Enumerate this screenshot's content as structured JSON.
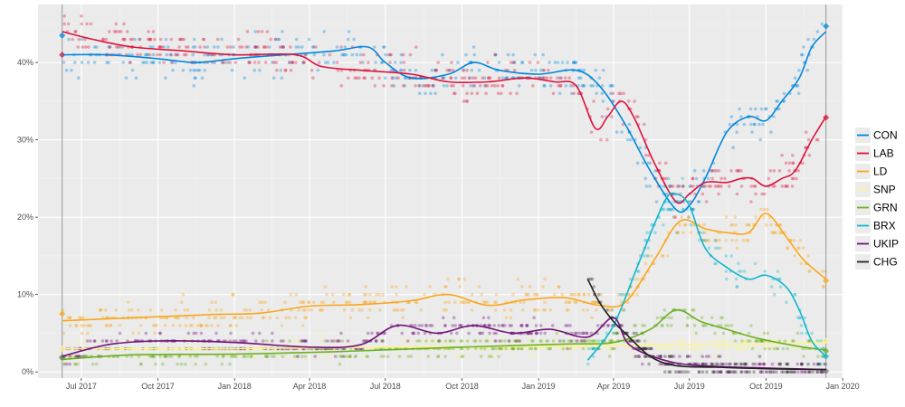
{
  "colors": {
    "panel_bg": "#ebebeb",
    "grid_major": "#ffffff",
    "grid_minor": "#f4f4f4",
    "axis_text": "#4d4d4d",
    "event_line": "#999999"
  },
  "legend": {
    "items": [
      {
        "name": "CON",
        "color": "#0087dc"
      },
      {
        "name": "LAB",
        "color": "#dc143c"
      },
      {
        "name": "LD",
        "color": "#faa61a"
      },
      {
        "name": "SNP",
        "color": "#fdf38e"
      },
      {
        "name": "GRN",
        "color": "#6ab023"
      },
      {
        "name": "BRX",
        "color": "#12b6cf"
      },
      {
        "name": "UKIP",
        "color": "#70147a"
      },
      {
        "name": "CHG",
        "color": "#222221"
      }
    ]
  },
  "chart_data": {
    "type": "line",
    "title": "",
    "xlabel": "",
    "ylabel": "",
    "x_range": [
      "2017-05-10",
      "2020-01-02"
    ],
    "ylim": [
      -0.8,
      47.5
    ],
    "x_ticks": [
      {
        "date": "2017-07-01",
        "label": "Jul 2017"
      },
      {
        "date": "2017-10-01",
        "label": "Oct 2017"
      },
      {
        "date": "2018-01-01",
        "label": "Jan 2018"
      },
      {
        "date": "2018-04-01",
        "label": "Apr 2018"
      },
      {
        "date": "2018-07-01",
        "label": "Jul 2018"
      },
      {
        "date": "2018-10-01",
        "label": "Oct 2018"
      },
      {
        "date": "2019-01-01",
        "label": "Jan 2019"
      },
      {
        "date": "2019-04-01",
        "label": "Apr 2019"
      },
      {
        "date": "2019-07-01",
        "label": "Jul 2019"
      },
      {
        "date": "2019-10-01",
        "label": "Oct 2019"
      },
      {
        "date": "2020-01-01",
        "label": "Jan 2020"
      }
    ],
    "y_ticks": [
      {
        "value": 0,
        "label": "0%"
      },
      {
        "value": 10,
        "label": "10%"
      },
      {
        "value": 20,
        "label": "20%"
      },
      {
        "value": 30,
        "label": "30%"
      },
      {
        "value": 40,
        "label": "40%"
      }
    ],
    "event_lines": [
      "2017-06-08",
      "2019-12-12"
    ],
    "grid": true,
    "legend_position": "right",
    "series": [
      {
        "name": "CON",
        "color": "#0087dc",
        "points": [
          [
            "2017-06-08",
            41
          ],
          [
            "2017-08-01",
            41
          ],
          [
            "2017-10-01",
            40.5
          ],
          [
            "2017-11-15",
            40
          ],
          [
            "2018-01-01",
            40.5
          ],
          [
            "2018-03-01",
            41
          ],
          [
            "2018-05-01",
            41.5
          ],
          [
            "2018-06-10",
            42
          ],
          [
            "2018-07-01",
            40
          ],
          [
            "2018-08-01",
            38
          ],
          [
            "2018-09-15",
            38.5
          ],
          [
            "2018-10-15",
            40
          ],
          [
            "2018-11-15",
            39
          ],
          [
            "2019-01-01",
            38.5
          ],
          [
            "2019-02-15",
            39
          ],
          [
            "2019-03-15",
            37
          ],
          [
            "2019-04-15",
            32
          ],
          [
            "2019-05-15",
            26
          ],
          [
            "2019-06-15",
            21
          ],
          [
            "2019-07-01",
            21.5
          ],
          [
            "2019-07-20",
            25
          ],
          [
            "2019-08-15",
            31
          ],
          [
            "2019-09-10",
            33
          ],
          [
            "2019-10-01",
            32.5
          ],
          [
            "2019-10-20",
            35
          ],
          [
            "2019-11-10",
            38
          ],
          [
            "2019-11-25",
            42
          ],
          [
            "2019-12-12",
            44
          ]
        ]
      },
      {
        "name": "LAB",
        "color": "#dc143c",
        "points": [
          [
            "2017-06-08",
            44
          ],
          [
            "2017-07-15",
            43
          ],
          [
            "2017-09-01",
            42
          ],
          [
            "2017-11-01",
            41.5
          ],
          [
            "2018-01-01",
            41
          ],
          [
            "2018-03-15",
            41
          ],
          [
            "2018-04-15",
            39.5
          ],
          [
            "2018-06-01",
            39
          ],
          [
            "2018-08-01",
            38.5
          ],
          [
            "2018-09-15",
            37.5
          ],
          [
            "2018-11-01",
            37.5
          ],
          [
            "2018-12-15",
            38
          ],
          [
            "2019-01-20",
            37.5
          ],
          [
            "2019-02-15",
            37
          ],
          [
            "2019-03-10",
            31.5
          ],
          [
            "2019-03-25",
            33
          ],
          [
            "2019-04-10",
            35
          ],
          [
            "2019-04-25",
            33
          ],
          [
            "2019-05-20",
            27
          ],
          [
            "2019-06-15",
            22
          ],
          [
            "2019-07-01",
            23
          ],
          [
            "2019-07-20",
            24.5
          ],
          [
            "2019-08-15",
            24.5
          ],
          [
            "2019-09-01",
            25
          ],
          [
            "2019-09-15",
            25
          ],
          [
            "2019-10-01",
            24
          ],
          [
            "2019-10-20",
            25
          ],
          [
            "2019-11-05",
            26
          ],
          [
            "2019-11-25",
            30
          ],
          [
            "2019-12-12",
            33
          ]
        ]
      },
      {
        "name": "LD",
        "color": "#faa61a",
        "points": [
          [
            "2017-06-08",
            6.6
          ],
          [
            "2017-09-01",
            7
          ],
          [
            "2017-12-01",
            7.4
          ],
          [
            "2018-02-01",
            7.6
          ],
          [
            "2018-04-01",
            8.5
          ],
          [
            "2018-06-01",
            8.7
          ],
          [
            "2018-08-01",
            9.2
          ],
          [
            "2018-09-15",
            10
          ],
          [
            "2018-11-01",
            8.6
          ],
          [
            "2018-12-15",
            9.3
          ],
          [
            "2019-02-01",
            9.6
          ],
          [
            "2019-03-15",
            8.6
          ],
          [
            "2019-04-15",
            9
          ],
          [
            "2019-05-20",
            14.5
          ],
          [
            "2019-06-20",
            19.5
          ],
          [
            "2019-07-20",
            18.5
          ],
          [
            "2019-08-15",
            18
          ],
          [
            "2019-09-10",
            18
          ],
          [
            "2019-10-01",
            20.5
          ],
          [
            "2019-10-25",
            17.5
          ],
          [
            "2019-11-15",
            14.5
          ],
          [
            "2019-12-12",
            12
          ]
        ]
      },
      {
        "name": "SNP",
        "color": "#fdf38e",
        "points": [
          [
            "2017-06-08",
            3.0
          ],
          [
            "2018-01-01",
            3.0
          ],
          [
            "2018-07-01",
            3.2
          ],
          [
            "2019-01-01",
            3.3
          ],
          [
            "2019-06-01",
            3.5
          ],
          [
            "2019-10-01",
            3.6
          ],
          [
            "2019-12-12",
            3.8
          ]
        ]
      },
      {
        "name": "GRN",
        "color": "#6ab023",
        "points": [
          [
            "2017-06-08",
            1.6
          ],
          [
            "2017-09-01",
            2.2
          ],
          [
            "2018-01-01",
            2.3
          ],
          [
            "2018-05-01",
            2.6
          ],
          [
            "2018-10-01",
            3.2
          ],
          [
            "2019-02-01",
            3.6
          ],
          [
            "2019-04-01",
            3.8
          ],
          [
            "2019-05-15",
            5.5
          ],
          [
            "2019-06-15",
            8
          ],
          [
            "2019-07-15",
            6.5
          ],
          [
            "2019-08-15",
            5.5
          ],
          [
            "2019-09-15",
            4.5
          ],
          [
            "2019-10-15",
            3.8
          ],
          [
            "2019-11-15",
            3.2
          ],
          [
            "2019-12-12",
            2.8
          ]
        ]
      },
      {
        "name": "BRX",
        "color": "#12b6cf",
        "points": [
          [
            "2019-03-01",
            1.5
          ],
          [
            "2019-04-01",
            6
          ],
          [
            "2019-05-01",
            14
          ],
          [
            "2019-06-01",
            22
          ],
          [
            "2019-06-15",
            23
          ],
          [
            "2019-07-01",
            21.5
          ],
          [
            "2019-07-20",
            16
          ],
          [
            "2019-08-15",
            13.5
          ],
          [
            "2019-09-10",
            12
          ],
          [
            "2019-10-01",
            12.5
          ],
          [
            "2019-10-25",
            11
          ],
          [
            "2019-11-10",
            8
          ],
          [
            "2019-11-25",
            4
          ],
          [
            "2019-12-12",
            2
          ]
        ]
      },
      {
        "name": "UKIP",
        "color": "#70147a",
        "points": [
          [
            "2017-06-08",
            2
          ],
          [
            "2017-08-01",
            3.5
          ],
          [
            "2017-10-01",
            4
          ],
          [
            "2018-01-01",
            3.8
          ],
          [
            "2018-04-01",
            3.2
          ],
          [
            "2018-06-01",
            3.5
          ],
          [
            "2018-07-15",
            6
          ],
          [
            "2018-09-01",
            5
          ],
          [
            "2018-10-15",
            6
          ],
          [
            "2018-12-01",
            5
          ],
          [
            "2019-01-15",
            5.5
          ],
          [
            "2019-03-01",
            4.5
          ],
          [
            "2019-04-01",
            7
          ],
          [
            "2019-04-20",
            3.5
          ],
          [
            "2019-06-01",
            1.5
          ],
          [
            "2019-07-15",
            0.8
          ],
          [
            "2019-10-01",
            0.5
          ],
          [
            "2019-12-12",
            0.3
          ]
        ]
      },
      {
        "name": "CHG",
        "color": "#222221",
        "points": [
          [
            "2019-03-01",
            12
          ],
          [
            "2019-03-15",
            9
          ],
          [
            "2019-04-01",
            6.5
          ],
          [
            "2019-04-15",
            5
          ],
          [
            "2019-05-15",
            2
          ],
          [
            "2019-06-15",
            0.8
          ],
          [
            "2019-08-01",
            0.6
          ],
          [
            "2019-10-01",
            0.4
          ],
          [
            "2019-12-12",
            0.3
          ]
        ]
      }
    ]
  }
}
